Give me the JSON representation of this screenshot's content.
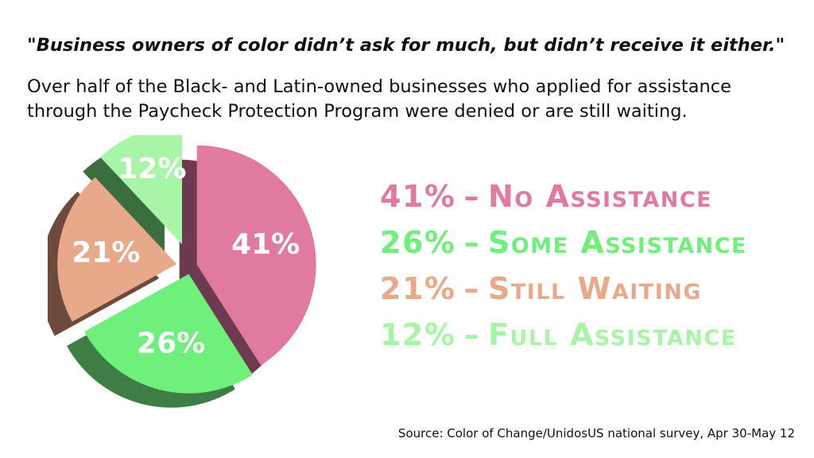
{
  "header": {
    "quote": "\"Business owners of color didn’t ask for much, but didn’t receive it either.\"",
    "subtitle": "Over half of the Black- and Latin-owned businesses who applied for assistance through the Paycheck Protection Program were denied or are still waiting."
  },
  "chart_data": {
    "type": "pie",
    "title": "",
    "categories": [
      "No Assistance",
      "Some Assistance",
      "Still Waiting",
      "Full Assistance"
    ],
    "values": [
      41,
      26,
      21,
      12
    ],
    "value_labels": [
      "41%",
      "26%",
      "21%",
      "12%"
    ],
    "colors": [
      "#e07aa1",
      "#6ff07c",
      "#e8a88a",
      "#a8f5a8"
    ],
    "shadow_colors": [
      "#6e3a52",
      "#3f7d47",
      "#6e4a3c",
      "#3a6d40"
    ],
    "exploded": true,
    "legend_placement": "right",
    "legend": [
      {
        "pct": "41%",
        "label": "No Assistance"
      },
      {
        "pct": "26%",
        "label": "Some Assistance"
      },
      {
        "pct": "21%",
        "label": "Still Waiting"
      },
      {
        "pct": "12%",
        "label": "Full Assistance"
      }
    ],
    "legend_separator": "–"
  },
  "footer": {
    "source": "Source: Color of Change/UnidosUS national survey, Apr 30-May 12"
  }
}
